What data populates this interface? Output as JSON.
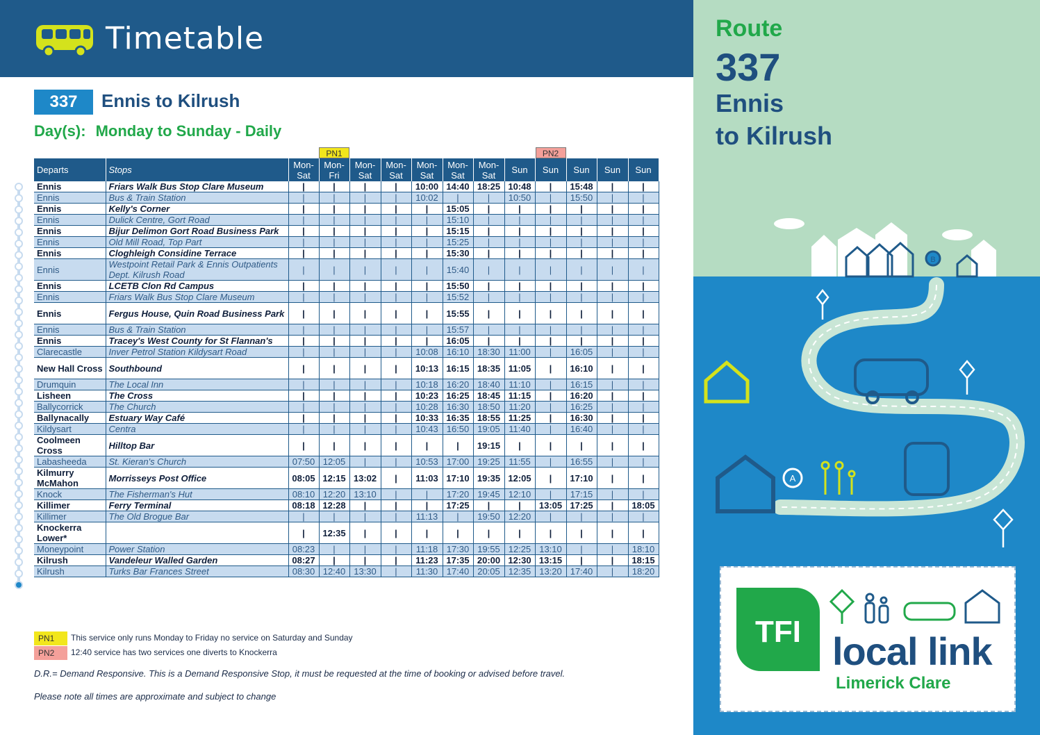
{
  "header": {
    "title": "Timetable"
  },
  "route": {
    "number": "337",
    "title": "Ennis to Kilrush"
  },
  "days": {
    "label": "Day(s):",
    "value": "Monday to Sunday - Daily"
  },
  "table": {
    "flags": [
      "",
      "PN1",
      "",
      "",
      "",
      "",
      "",
      "",
      "PN2",
      "",
      "",
      ""
    ],
    "headers": {
      "departs": "Departs",
      "stops": "Stops",
      "columns": [
        [
          "Mon-",
          "Sat"
        ],
        [
          "Mon-",
          "Fri"
        ],
        [
          "Mon-",
          "Sat"
        ],
        [
          "Mon-",
          "Sat"
        ],
        [
          "Mon-",
          "Sat"
        ],
        [
          "Mon-",
          "Sat"
        ],
        [
          "Mon-",
          "Sat"
        ],
        [
          "Sun",
          ""
        ],
        [
          "Sun",
          ""
        ],
        [
          "Sun",
          ""
        ],
        [
          "Sun",
          ""
        ],
        [
          "Sun",
          ""
        ]
      ]
    },
    "rows": [
      {
        "place": "Ennis",
        "stop": "Friars Walk Bus Stop Clare Museum",
        "bold": true,
        "times": [
          "|",
          "|",
          "|",
          "|",
          "10:00",
          "14:40",
          "18:25",
          "10:48",
          "|",
          "15:48",
          "|",
          "|"
        ]
      },
      {
        "place": "Ennis",
        "stop": "Bus & Train Station",
        "bold": false,
        "times": [
          "|",
          "|",
          "|",
          "|",
          "10:02",
          "|",
          "|",
          "10:50",
          "|",
          "15:50",
          "|",
          "|"
        ]
      },
      {
        "place": "Ennis",
        "stop": "Kelly's Corner",
        "bold": true,
        "times": [
          "|",
          "|",
          "|",
          "|",
          "|",
          "15:05",
          "|",
          "|",
          "|",
          "|",
          "|",
          "|"
        ]
      },
      {
        "place": "Ennis",
        "stop": "Dulick Centre, Gort Road",
        "bold": false,
        "times": [
          "|",
          "|",
          "|",
          "|",
          "|",
          "15:10",
          "|",
          "|",
          "|",
          "|",
          "|",
          "|"
        ]
      },
      {
        "place": "Ennis",
        "stop": "Bijur Delimon Gort Road Business Park",
        "bold": true,
        "times": [
          "|",
          "|",
          "|",
          "|",
          "|",
          "15:15",
          "|",
          "|",
          "|",
          "|",
          "|",
          "|"
        ]
      },
      {
        "place": "Ennis",
        "stop": "Old Mill Road, Top Part",
        "bold": false,
        "times": [
          "|",
          "|",
          "|",
          "|",
          "|",
          "15:25",
          "|",
          "|",
          "|",
          "|",
          "|",
          "|"
        ]
      },
      {
        "place": "Ennis",
        "stop": "Cloghleigh Considine Terrace",
        "bold": true,
        "times": [
          "|",
          "|",
          "|",
          "|",
          "|",
          "15:30",
          "|",
          "|",
          "|",
          "|",
          "|",
          "|"
        ]
      },
      {
        "place": "Ennis",
        "stop": "Westpoint Retail Park & Ennis Outpatients Dept. Kilrush Road",
        "bold": false,
        "tall": true,
        "times": [
          "|",
          "|",
          "|",
          "|",
          "|",
          "15:40",
          "|",
          "|",
          "|",
          "|",
          "|",
          "|"
        ]
      },
      {
        "place": "Ennis",
        "stop": "LCETB Clon Rd Campus",
        "bold": true,
        "times": [
          "|",
          "|",
          "|",
          "|",
          "|",
          "15:50",
          "|",
          "|",
          "|",
          "|",
          "|",
          "|"
        ]
      },
      {
        "place": "Ennis",
        "stop": "Friars Walk Bus Stop Clare Museum",
        "bold": false,
        "times": [
          "|",
          "|",
          "|",
          "|",
          "|",
          "15:52",
          "|",
          "|",
          "|",
          "|",
          "|",
          "|"
        ]
      },
      {
        "place": "Ennis",
        "stop": "Fergus House, Quin Road Business Park",
        "bold": true,
        "tall": true,
        "times": [
          "|",
          "|",
          "|",
          "|",
          "|",
          "15:55",
          "|",
          "|",
          "|",
          "|",
          "|",
          "|"
        ]
      },
      {
        "place": "Ennis",
        "stop": "Bus & Train Station",
        "bold": false,
        "times": [
          "|",
          "|",
          "|",
          "|",
          "|",
          "15:57",
          "|",
          "|",
          "|",
          "|",
          "|",
          "|"
        ]
      },
      {
        "place": "Ennis",
        "stop": "Tracey's West County for St Flannan's",
        "bold": true,
        "times": [
          "|",
          "|",
          "|",
          "|",
          "|",
          "16:05",
          "|",
          "|",
          "|",
          "|",
          "|",
          "|"
        ]
      },
      {
        "place": "Clarecastle",
        "stop": "Inver Petrol Station Kildysart Road",
        "bold": false,
        "times": [
          "|",
          "|",
          "|",
          "|",
          "10:08",
          "16:10",
          "18:30",
          "11:00",
          "|",
          "16:05",
          "|",
          "|"
        ]
      },
      {
        "place": "New Hall Cross",
        "stop": "Southbound",
        "bold": true,
        "tall": true,
        "times": [
          "|",
          "|",
          "|",
          "|",
          "10:13",
          "16:15",
          "18:35",
          "11:05",
          "|",
          "16:10",
          "|",
          "|"
        ]
      },
      {
        "place": "Drumquin",
        "stop": "The Local Inn",
        "bold": false,
        "times": [
          "|",
          "|",
          "|",
          "|",
          "10:18",
          "16:20",
          "18:40",
          "11:10",
          "|",
          "16:15",
          "|",
          "|"
        ]
      },
      {
        "place": "Lisheen",
        "stop": "The Cross",
        "bold": true,
        "times": [
          "|",
          "|",
          "|",
          "|",
          "10:23",
          "16:25",
          "18:45",
          "11:15",
          "|",
          "16:20",
          "|",
          "|"
        ]
      },
      {
        "place": "Ballycorrick",
        "stop": "The Church",
        "bold": false,
        "times": [
          "|",
          "|",
          "|",
          "|",
          "10:28",
          "16:30",
          "18:50",
          "11:20",
          "|",
          "16:25",
          "|",
          "|"
        ]
      },
      {
        "place": "Ballynacally",
        "stop": "Estuary Way Café",
        "bold": true,
        "times": [
          "|",
          "|",
          "|",
          "|",
          "10:33",
          "16:35",
          "18:55",
          "11:25",
          "|",
          "16:30",
          "|",
          "|"
        ]
      },
      {
        "place": "Kildysart",
        "stop": "Centra",
        "bold": false,
        "times": [
          "|",
          "|",
          "|",
          "|",
          "10:43",
          "16:50",
          "19:05",
          "11:40",
          "|",
          "16:40",
          "|",
          "|"
        ]
      },
      {
        "place": "Coolmeen Cross",
        "stop": "Hilltop Bar",
        "bold": true,
        "tall": true,
        "times": [
          "|",
          "|",
          "|",
          "|",
          "|",
          "|",
          "19:15",
          "|",
          "|",
          "|",
          "|",
          "|"
        ]
      },
      {
        "place": "Labasheeda",
        "stop": "St. Kieran's  Church",
        "bold": false,
        "times": [
          "07:50",
          "12:05",
          "|",
          "|",
          "10:53",
          "17:00",
          "19:25",
          "11:55",
          "|",
          "16:55",
          "|",
          "|"
        ]
      },
      {
        "place": "Kilmurry McMahon",
        "stop": "Morrisseys Post Office",
        "bold": true,
        "tall": true,
        "times": [
          "08:05",
          "12:15",
          "13:02",
          "|",
          "11:03",
          "17:10",
          "19:35",
          "12:05",
          "|",
          "17:10",
          "|",
          "|"
        ]
      },
      {
        "place": "Knock",
        "stop": "The Fisherman's Hut",
        "bold": false,
        "times": [
          "08:10",
          "12:20",
          "13:10",
          "|",
          "|",
          "17:20",
          "19:45",
          "12:10",
          "|",
          "17:15",
          "|",
          "|"
        ]
      },
      {
        "place": "Killimer",
        "stop": "Ferry Terminal",
        "bold": true,
        "times": [
          "08:18",
          "12:28",
          "|",
          "|",
          "|",
          "17:25",
          "|",
          "|",
          "13:05",
          "17:25",
          "|",
          "18:05"
        ]
      },
      {
        "place": "Killimer",
        "stop": "The Old Brogue Bar",
        "bold": false,
        "times": [
          "|",
          "|",
          "|",
          "|",
          "11:13",
          "|",
          "19:50",
          "12:20",
          "|",
          "|",
          "|",
          "|"
        ]
      },
      {
        "place": "Knockerra Lower*",
        "stop": "",
        "bold": true,
        "tall": true,
        "times": [
          "|",
          "12:35",
          "|",
          "|",
          "|",
          "|",
          "|",
          "|",
          "|",
          "|",
          "|",
          "|"
        ]
      },
      {
        "place": "Moneypoint",
        "stop": "Power Station",
        "bold": false,
        "times": [
          "08:23",
          "|",
          "|",
          "|",
          "11:18",
          "17:30",
          "19:55",
          "12:25",
          "13:10",
          "|",
          "|",
          "18:10"
        ]
      },
      {
        "place": "Kilrush",
        "stop": "Vandeleur Walled Garden",
        "bold": true,
        "times": [
          "08:27",
          "|",
          "|",
          "|",
          "11:23",
          "17:35",
          "20:00",
          "12:30",
          "13:15",
          "|",
          "|",
          "18:15"
        ]
      },
      {
        "place": "Kilrush",
        "stop": "Turks Bar Frances Street",
        "bold": false,
        "times": [
          "08:30",
          "12:40",
          "13:30",
          "|",
          "11:30",
          "17:40",
          "20:05",
          "12:35",
          "13:20",
          "17:40",
          "|",
          "18:20"
        ]
      }
    ]
  },
  "legend": {
    "pn1_code": "PN1",
    "pn1_text": "This service only runs Monday to Friday no service on Saturday and Sunday",
    "pn2_code": "PN2",
    "pn2_text": "12:40 service has two services one diverts to Knockerra"
  },
  "notes": {
    "demand": "D.R.= Demand Responsive. This is a Demand Responsive Stop, it must be requested at the time of booking or advised before travel.",
    "approx": "Please note all times are approximate and subject to change"
  },
  "sidebar": {
    "route_label": "Route",
    "route_number": "337",
    "line1": "Ennis",
    "line2": "to Kilrush"
  },
  "logo": {
    "tfi": "TFI",
    "local_link": "local link",
    "region": "Limerick Clare"
  },
  "colors": {
    "navy": "#1f5a8a",
    "green": "#21a84a",
    "sky": "#1e88c8",
    "mint": "#b5dcc2",
    "pn1": "#f2e61c",
    "pn2": "#f4a09a"
  }
}
